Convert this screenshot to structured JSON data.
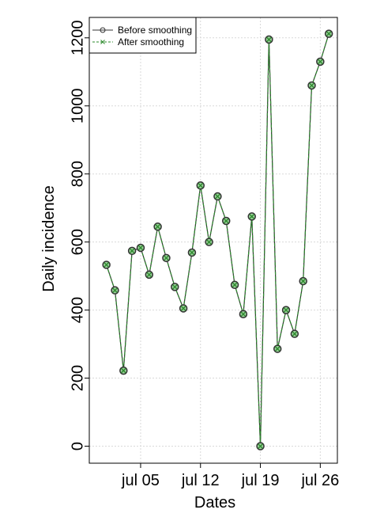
{
  "chart_data": {
    "type": "line",
    "xlabel": "Dates",
    "ylabel": "Daily incidence",
    "ylim": [
      -50,
      1260
    ],
    "xlim": [
      "2020-06-29",
      "2020-07-28"
    ],
    "x_ticks": [
      {
        "date": "2020-07-05",
        "label": "jul 05"
      },
      {
        "date": "2020-07-12",
        "label": "jul 12"
      },
      {
        "date": "2020-07-19",
        "label": "jul 19"
      },
      {
        "date": "2020-07-26",
        "label": "jul 26"
      }
    ],
    "y_ticks": [
      0,
      200,
      400,
      600,
      800,
      1000,
      1200
    ],
    "grid": true,
    "legend_position": "top-left",
    "x": [
      "2020-07-01",
      "2020-07-02",
      "2020-07-03",
      "2020-07-04",
      "2020-07-05",
      "2020-07-06",
      "2020-07-07",
      "2020-07-08",
      "2020-07-09",
      "2020-07-10",
      "2020-07-11",
      "2020-07-12",
      "2020-07-13",
      "2020-07-14",
      "2020-07-15",
      "2020-07-16",
      "2020-07-17",
      "2020-07-18",
      "2020-07-19",
      "2020-07-20",
      "2020-07-21",
      "2020-07-22",
      "2020-07-23",
      "2020-07-24",
      "2020-07-25",
      "2020-07-26",
      "2020-07-27"
    ],
    "series": [
      {
        "name": "Before smoothing",
        "color": "#333333",
        "marker": "circle",
        "values": [
          533,
          458,
          222,
          574,
          583,
          504,
          645,
          553,
          468,
          405,
          569,
          766,
          600,
          734,
          662,
          474,
          388,
          675,
          0,
          1195,
          286,
          400,
          330,
          485,
          1060,
          1130,
          1212
        ]
      },
      {
        "name": "After smoothing",
        "color": "#2e8b2e",
        "marker": "x",
        "values": [
          533,
          458,
          222,
          574,
          583,
          504,
          645,
          553,
          468,
          405,
          569,
          766,
          600,
          734,
          662,
          474,
          388,
          675,
          0,
          1195,
          286,
          400,
          330,
          485,
          1060,
          1130,
          1212
        ]
      }
    ]
  }
}
